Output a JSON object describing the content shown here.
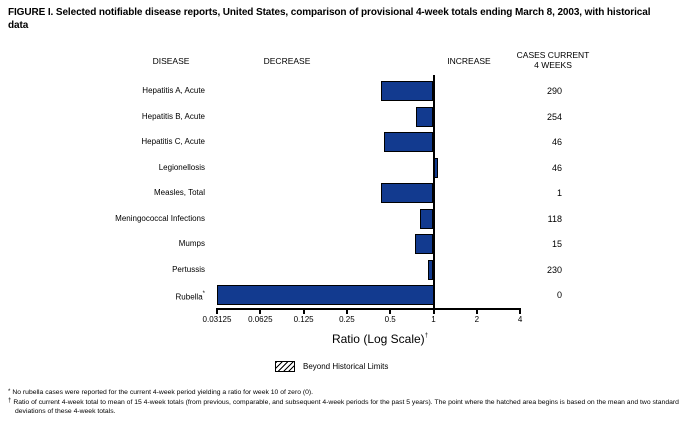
{
  "title": "FIGURE I. Selected notifiable disease reports, United States, comparison of provisional 4-week totals ending March 8, 2003, with historical data",
  "columns": {
    "disease": "DISEASE",
    "decrease": "DECREASE",
    "increase": "INCREASE",
    "cases_line1": "CASES CURRENT",
    "cases_line2": "4 WEEKS"
  },
  "chart_data": {
    "type": "bar",
    "orientation": "horizontal",
    "scale": "log2",
    "baseline_ratio": 1,
    "xlabel": "Ratio (Log Scale)",
    "xlabel_sup": "†",
    "x_tick_labels": [
      "0.03125",
      "0.0625",
      "0.125",
      "0.25",
      "0.5",
      "1",
      "2",
      "4"
    ],
    "x_ticks": [
      0.03125,
      0.0625,
      0.125,
      0.25,
      0.5,
      1,
      2,
      4
    ],
    "xlim": [
      0.03125,
      4
    ],
    "bar_color": "#123a8f",
    "rows": [
      {
        "disease": "Hepatitis A, Acute",
        "ratio": 0.43,
        "cases": "290"
      },
      {
        "disease": "Hepatitis B, Acute",
        "ratio": 0.76,
        "cases": "254"
      },
      {
        "disease": "Hepatitis C, Acute",
        "ratio": 0.45,
        "cases": "46"
      },
      {
        "disease": "Legionellosis",
        "ratio": 1.08,
        "cases": "46"
      },
      {
        "disease": "Measles, Total",
        "ratio": 0.43,
        "cases": "1"
      },
      {
        "disease": "Meningococcal Infections",
        "ratio": 0.8,
        "cases": "118"
      },
      {
        "disease": "Mumps",
        "ratio": 0.74,
        "cases": "15"
      },
      {
        "disease": "Pertussis",
        "ratio": 0.92,
        "cases": "230"
      },
      {
        "disease": "Rubella",
        "disease_sup": "*",
        "ratio": 0.03125,
        "cases": "0"
      }
    ],
    "legend": {
      "label": "Beyond Historical Limits",
      "style": "hatched"
    }
  },
  "footnotes": [
    {
      "marker": "*",
      "text": "No rubella cases were reported for the current 4-week period yielding a ratio for week 10 of zero (0)."
    },
    {
      "marker": "†",
      "text": "Ratio of current 4-week total to mean of 15 4-week totals (from previous, comparable, and subsequent 4-week periods for the past 5 years). The point where the hatched area begins is based on the mean and two standard deviations of these 4-week totals."
    }
  ]
}
